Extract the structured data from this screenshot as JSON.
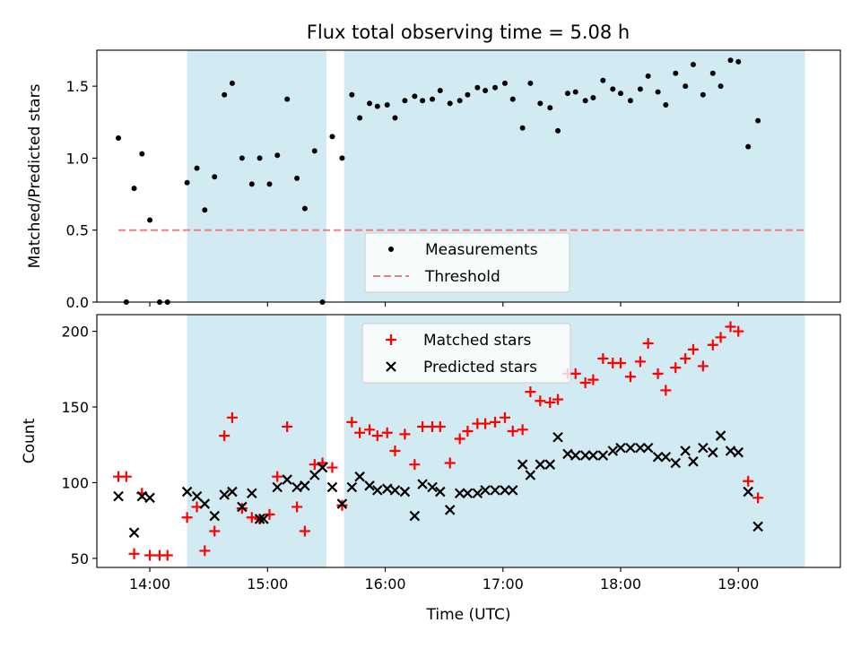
{
  "title": "Flux total observing time = 5.08 h",
  "colors": {
    "band": "#add8e6",
    "measurement": "#000000",
    "threshold": "#f08080",
    "matched": "#ff0000",
    "predicted": "#000000"
  },
  "chart_data": [
    {
      "type": "scatter",
      "ylabel": "Matched/Predicted stars",
      "ylim": [
        0,
        1.75
      ],
      "xlim": [
        "13:33",
        "19:52"
      ],
      "yticks": [
        "0.0",
        "0.5",
        "1.0",
        "1.5"
      ],
      "ytick_values": [
        0,
        0.5,
        1.0,
        1.5
      ],
      "grid": false,
      "legend_position": "bottom-center",
      "shaded_intervals": [
        [
          "14:19",
          "15:30"
        ],
        [
          "15:39",
          "19:34"
        ]
      ],
      "threshold": {
        "name": "Threshold",
        "value": 0.5,
        "x_range": [
          "13:44",
          "19:34"
        ]
      },
      "series": [
        {
          "name": "Measurements",
          "points": [
            [
              "13:44",
              1.14
            ],
            [
              "13:48",
              0.0
            ],
            [
              "13:52",
              0.79
            ],
            [
              "13:56",
              1.03
            ],
            [
              "14:00",
              0.57
            ],
            [
              "14:05",
              0.0
            ],
            [
              "14:09",
              0.0
            ],
            [
              "14:19",
              0.83
            ],
            [
              "14:24",
              0.93
            ],
            [
              "14:28",
              0.64
            ],
            [
              "14:33",
              0.87
            ],
            [
              "14:38",
              1.44
            ],
            [
              "14:42",
              1.52
            ],
            [
              "14:47",
              1.0
            ],
            [
              "14:52",
              0.82
            ],
            [
              "14:56",
              1.0
            ],
            [
              "15:01",
              0.82
            ],
            [
              "15:05",
              1.02
            ],
            [
              "15:10",
              1.41
            ],
            [
              "15:15",
              0.86
            ],
            [
              "15:19",
              0.65
            ],
            [
              "15:24",
              1.05
            ],
            [
              "15:28",
              0.0
            ],
            [
              "15:33",
              1.15
            ],
            [
              "15:38",
              1.0
            ],
            [
              "15:43",
              1.44
            ],
            [
              "15:47",
              1.28
            ],
            [
              "15:52",
              1.38
            ],
            [
              "15:56",
              1.36
            ],
            [
              "16:01",
              1.37
            ],
            [
              "16:05",
              1.28
            ],
            [
              "16:10",
              1.4
            ],
            [
              "16:15",
              1.43
            ],
            [
              "16:19",
              1.4
            ],
            [
              "16:24",
              1.41
            ],
            [
              "16:28",
              1.47
            ],
            [
              "16:33",
              1.38
            ],
            [
              "16:38",
              1.4
            ],
            [
              "16:42",
              1.44
            ],
            [
              "16:47",
              1.49
            ],
            [
              "16:51",
              1.47
            ],
            [
              "16:56",
              1.49
            ],
            [
              "17:01",
              1.52
            ],
            [
              "17:05",
              1.41
            ],
            [
              "17:10",
              1.21
            ],
            [
              "17:14",
              1.52
            ],
            [
              "17:19",
              1.38
            ],
            [
              "17:24",
              1.35
            ],
            [
              "17:28",
              1.19
            ],
            [
              "17:33",
              1.45
            ],
            [
              "17:37",
              1.46
            ],
            [
              "17:42",
              1.4
            ],
            [
              "17:46",
              1.42
            ],
            [
              "17:51",
              1.54
            ],
            [
              "17:56",
              1.48
            ],
            [
              "18:00",
              1.45
            ],
            [
              "18:05",
              1.4
            ],
            [
              "18:10",
              1.48
            ],
            [
              "18:14",
              1.57
            ],
            [
              "18:19",
              1.46
            ],
            [
              "18:23",
              1.37
            ],
            [
              "18:28",
              1.59
            ],
            [
              "18:33",
              1.5
            ],
            [
              "18:37",
              1.65
            ],
            [
              "18:42",
              1.44
            ],
            [
              "18:47",
              1.59
            ],
            [
              "18:51",
              1.5
            ],
            [
              "18:56",
              1.68
            ],
            [
              "19:00",
              1.67
            ],
            [
              "19:05",
              1.08
            ],
            [
              "19:10",
              1.26
            ]
          ]
        }
      ]
    },
    {
      "type": "scatter",
      "xlabel": "Time (UTC)",
      "ylabel": "Count",
      "ylim": [
        44,
        211
      ],
      "xlim": [
        "13:33",
        "19:52"
      ],
      "xticks": [
        "14:00",
        "15:00",
        "16:00",
        "17:00",
        "18:00",
        "19:00"
      ],
      "yticks": [
        "50",
        "100",
        "150",
        "200"
      ],
      "ytick_values": [
        50,
        100,
        150,
        200
      ],
      "grid": false,
      "legend_position": "top-center",
      "shaded_intervals": [
        [
          "14:19",
          "15:30"
        ],
        [
          "15:39",
          "19:34"
        ]
      ],
      "series": [
        {
          "name": "Matched stars",
          "points": [
            [
              "13:44",
              104
            ],
            [
              "13:48",
              104
            ],
            [
              "13:52",
              53
            ],
            [
              "13:56",
              93
            ],
            [
              "14:00",
              52
            ],
            [
              "14:05",
              52
            ],
            [
              "14:09",
              52
            ],
            [
              "14:19",
              77
            ],
            [
              "14:24",
              84
            ],
            [
              "14:28",
              55
            ],
            [
              "14:33",
              68
            ],
            [
              "14:38",
              131
            ],
            [
              "14:42",
              143
            ],
            [
              "14:47",
              83
            ],
            [
              "14:52",
              77
            ],
            [
              "14:56",
              76
            ],
            [
              "15:01",
              79
            ],
            [
              "15:05",
              104
            ],
            [
              "15:10",
              137
            ],
            [
              "15:15",
              84
            ],
            [
              "15:19",
              68
            ],
            [
              "15:24",
              112
            ],
            [
              "15:28",
              113
            ],
            [
              "15:33",
              110
            ],
            [
              "15:38",
              85
            ],
            [
              "15:43",
              140
            ],
            [
              "15:47",
              133
            ],
            [
              "15:52",
              135
            ],
            [
              "15:56",
              131
            ],
            [
              "16:01",
              133
            ],
            [
              "16:05",
              121
            ],
            [
              "16:10",
              132
            ],
            [
              "16:15",
              112
            ],
            [
              "16:19",
              137
            ],
            [
              "16:24",
              137
            ],
            [
              "16:28",
              137
            ],
            [
              "16:33",
              113
            ],
            [
              "16:38",
              129
            ],
            [
              "16:42",
              134
            ],
            [
              "16:47",
              139
            ],
            [
              "16:51",
              139
            ],
            [
              "16:56",
              140
            ],
            [
              "17:01",
              143
            ],
            [
              "17:05",
              134
            ],
            [
              "17:10",
              135
            ],
            [
              "17:14",
              160
            ],
            [
              "17:19",
              154
            ],
            [
              "17:24",
              153
            ],
            [
              "17:28",
              155
            ],
            [
              "17:33",
              172
            ],
            [
              "17:37",
              172
            ],
            [
              "17:42",
              166
            ],
            [
              "17:46",
              168
            ],
            [
              "17:51",
              182
            ],
            [
              "17:56",
              179
            ],
            [
              "18:00",
              179
            ],
            [
              "18:05",
              170
            ],
            [
              "18:10",
              180
            ],
            [
              "18:14",
              192
            ],
            [
              "18:19",
              172
            ],
            [
              "18:23",
              161
            ],
            [
              "18:28",
              176
            ],
            [
              "18:33",
              182
            ],
            [
              "18:37",
              188
            ],
            [
              "18:42",
              177
            ],
            [
              "18:47",
              191
            ],
            [
              "18:51",
              196
            ],
            [
              "18:56",
              203
            ],
            [
              "19:00",
              200
            ],
            [
              "19:05",
              101
            ],
            [
              "19:10",
              90
            ]
          ]
        },
        {
          "name": "Predicted stars",
          "points": [
            [
              "13:44",
              91
            ],
            [
              "13:52",
              67
            ],
            [
              "13:56",
              91
            ],
            [
              "14:00",
              90
            ],
            [
              "14:19",
              94
            ],
            [
              "14:24",
              91
            ],
            [
              "14:28",
              86
            ],
            [
              "14:33",
              78
            ],
            [
              "14:38",
              92
            ],
            [
              "14:42",
              94
            ],
            [
              "14:47",
              84
            ],
            [
              "14:52",
              93
            ],
            [
              "14:56",
              76
            ],
            [
              "14:58",
              76
            ],
            [
              "15:05",
              97
            ],
            [
              "15:10",
              102
            ],
            [
              "15:15",
              97
            ],
            [
              "15:19",
              98
            ],
            [
              "15:24",
              105
            ],
            [
              "15:28",
              110
            ],
            [
              "15:33",
              97
            ],
            [
              "15:38",
              86
            ],
            [
              "15:43",
              97
            ],
            [
              "15:47",
              104
            ],
            [
              "15:52",
              98
            ],
            [
              "15:56",
              95
            ],
            [
              "16:01",
              96
            ],
            [
              "16:05",
              95
            ],
            [
              "16:10",
              94
            ],
            [
              "16:15",
              78
            ],
            [
              "16:19",
              99
            ],
            [
              "16:24",
              97
            ],
            [
              "16:28",
              94
            ],
            [
              "16:33",
              82
            ],
            [
              "16:38",
              93
            ],
            [
              "16:42",
              93
            ],
            [
              "16:47",
              93
            ],
            [
              "16:51",
              95
            ],
            [
              "16:56",
              95
            ],
            [
              "17:01",
              95
            ],
            [
              "17:05",
              95
            ],
            [
              "17:10",
              112
            ],
            [
              "17:14",
              105
            ],
            [
              "17:19",
              112
            ],
            [
              "17:24",
              112
            ],
            [
              "17:28",
              130
            ],
            [
              "17:33",
              119
            ],
            [
              "17:37",
              118
            ],
            [
              "17:42",
              118
            ],
            [
              "17:46",
              118
            ],
            [
              "17:51",
              118
            ],
            [
              "17:56",
              121
            ],
            [
              "18:00",
              123
            ],
            [
              "18:05",
              123
            ],
            [
              "18:10",
              123
            ],
            [
              "18:14",
              123
            ],
            [
              "18:19",
              117
            ],
            [
              "18:23",
              117
            ],
            [
              "18:28",
              113
            ],
            [
              "18:33",
              121
            ],
            [
              "18:37",
              114
            ],
            [
              "18:42",
              123
            ],
            [
              "18:47",
              120
            ],
            [
              "18:51",
              131
            ],
            [
              "18:56",
              121
            ],
            [
              "19:00",
              120
            ],
            [
              "19:05",
              94
            ],
            [
              "19:10",
              71
            ]
          ]
        }
      ]
    }
  ]
}
